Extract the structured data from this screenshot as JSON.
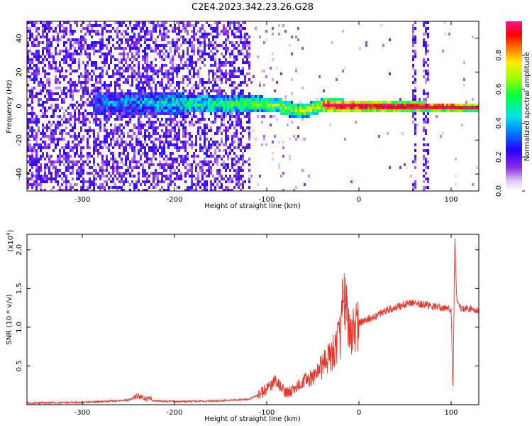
{
  "title": "C2E4.2023.342.23.26.G28",
  "chart_data": [
    {
      "type": "heatmap",
      "xlabel": "Height of straight line (km)",
      "ylabel": "Frequency (Hz)",
      "xlim": [
        -360,
        130
      ],
      "ylim": [
        -50,
        50
      ],
      "xticks": [
        -300,
        -200,
        -100,
        0,
        100
      ],
      "yticks": [
        -40,
        -20,
        0,
        20,
        40
      ],
      "colorbar": {
        "label": "Normalized spectral amplitude",
        "ticks": [
          0.0,
          0.2,
          0.4,
          0.6,
          0.8
        ],
        "range": [
          0,
          1
        ],
        "colormap": "hsv-rainbow"
      },
      "features": [
        {
          "name": "main-spectral-band",
          "x_range": [
            -290,
            130
          ],
          "center_hz_start": 3,
          "center_hz_end": 0,
          "half_width_hz_start": 7,
          "half_width_hz_end": 2
        },
        {
          "name": "burst-band",
          "x_range": [
            56,
            62
          ],
          "freq_range": [
            -45,
            45
          ]
        },
        {
          "name": "burst-band",
          "x_range": [
            68,
            76
          ],
          "freq_range": [
            -45,
            40
          ]
        },
        {
          "name": "diffuse-noise",
          "x_range": [
            -360,
            -120
          ],
          "freq_range": [
            -50,
            50
          ]
        }
      ]
    },
    {
      "type": "line",
      "xlabel": "Height of straight line (km)",
      "ylabel": "SNR (10 * v/v)",
      "y_multiplier": "(x10",
      "y_exponent": "4",
      "y_multiplier_close": ")",
      "xlim": [
        -360,
        130
      ],
      "ylim": [
        0,
        2.2
      ],
      "xticks": [
        -300,
        -200,
        -100,
        0,
        100
      ],
      "yticks": [
        "0.5",
        "1.0",
        "1.5",
        "2.0"
      ],
      "ytick_values": [
        0.5,
        1.0,
        1.5,
        2.0
      ],
      "color": "#e8352b",
      "series": [
        {
          "name": "SNR",
          "x": [
            -360,
            -300,
            -250,
            -240,
            -235,
            -220,
            -200,
            -150,
            -120,
            -110,
            -100,
            -95,
            -90,
            -80,
            -70,
            -60,
            -50,
            -40,
            -30,
            -25,
            -20,
            -17,
            -10,
            0,
            10,
            20,
            30,
            40,
            50,
            60,
            70,
            80,
            90,
            95,
            100,
            102,
            104,
            106,
            110,
            120,
            130
          ],
          "values": [
            0.02,
            0.03,
            0.06,
            0.11,
            0.09,
            0.05,
            0.04,
            0.05,
            0.07,
            0.12,
            0.2,
            0.25,
            0.32,
            0.15,
            0.2,
            0.3,
            0.35,
            0.5,
            0.62,
            0.75,
            0.9,
            1.45,
            0.95,
            1.05,
            1.1,
            1.15,
            1.22,
            1.25,
            1.3,
            1.32,
            1.3,
            1.27,
            1.25,
            1.24,
            1.23,
            0.2,
            2.2,
            1.35,
            1.25,
            1.24,
            1.22
          ]
        }
      ]
    }
  ]
}
